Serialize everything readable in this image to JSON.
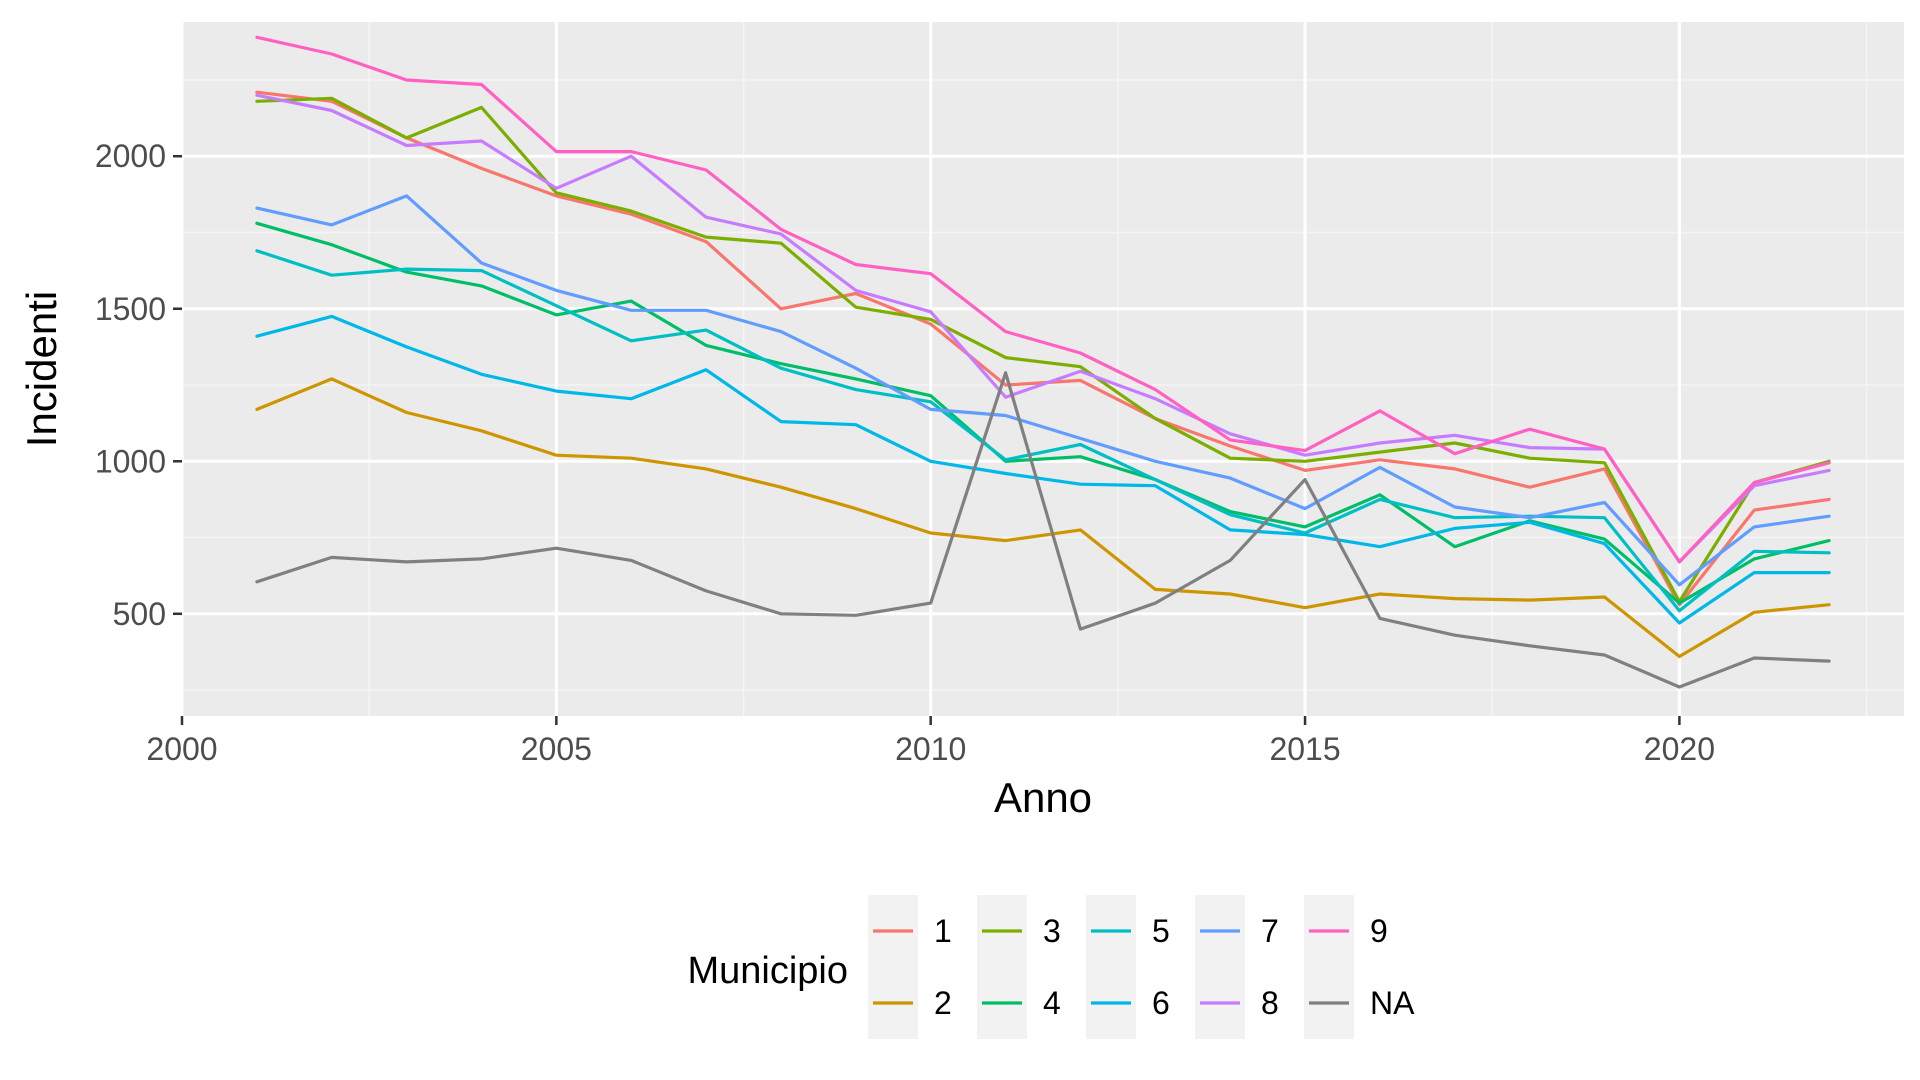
{
  "chart_data": {
    "type": "line",
    "title": "",
    "xlabel": "Anno",
    "ylabel": "Incidenti",
    "xlim": [
      2000,
      2023
    ],
    "ylim": [
      165,
      2440
    ],
    "x_ticks": [
      2000,
      2005,
      2010,
      2015,
      2020
    ],
    "y_ticks": [
      500,
      1000,
      1500,
      2000
    ],
    "x_tick_labels": [
      "2000",
      "2005",
      "2010",
      "2015",
      "2020"
    ],
    "y_tick_labels": [
      "500",
      "1000",
      "1500",
      "2000"
    ],
    "grid": true,
    "legend": {
      "title": "Municipio",
      "position": "bottom"
    },
    "x": [
      2001,
      2002,
      2003,
      2004,
      2005,
      2006,
      2007,
      2008,
      2009,
      2010,
      2011,
      2012,
      2013,
      2014,
      2015,
      2016,
      2017,
      2018,
      2019,
      2020,
      2021,
      2022
    ],
    "series": [
      {
        "name": "1",
        "color": "#F8766D",
        "values": [
          2210,
          2180,
          2060,
          1960,
          1870,
          1810,
          1720,
          1500,
          1550,
          1450,
          1250,
          1265,
          1140,
          1050,
          970,
          1005,
          975,
          915,
          975,
          530,
          840,
          875
        ]
      },
      {
        "name": "2",
        "color": "#CD9600",
        "values": [
          1170,
          1270,
          1160,
          1100,
          1020,
          1010,
          975,
          915,
          845,
          765,
          740,
          775,
          580,
          565,
          520,
          565,
          550,
          545,
          555,
          360,
          505,
          530
        ]
      },
      {
        "name": "3",
        "color": "#7CAE00",
        "values": [
          2180,
          2190,
          2060,
          2160,
          1880,
          1820,
          1735,
          1715,
          1505,
          1465,
          1340,
          1310,
          1140,
          1010,
          1000,
          1030,
          1060,
          1010,
          995,
          540,
          930,
          1000
        ]
      },
      {
        "name": "4",
        "color": "#00BE67",
        "values": [
          1780,
          1710,
          1620,
          1575,
          1480,
          1525,
          1380,
          1320,
          1270,
          1215,
          1000,
          1015,
          940,
          835,
          785,
          890,
          720,
          805,
          745,
          535,
          680,
          740
        ]
      },
      {
        "name": "5",
        "color": "#00BFC4",
        "values": [
          1690,
          1610,
          1630,
          1625,
          1510,
          1395,
          1430,
          1305,
          1235,
          1195,
          1005,
          1055,
          940,
          825,
          765,
          875,
          815,
          820,
          815,
          510,
          705,
          700
        ]
      },
      {
        "name": "6",
        "color": "#00B8E7",
        "values": [
          1410,
          1475,
          1375,
          1285,
          1230,
          1205,
          1300,
          1130,
          1120,
          1000,
          960,
          925,
          920,
          775,
          760,
          720,
          780,
          800,
          730,
          470,
          635,
          635
        ]
      },
      {
        "name": "7",
        "color": "#619CFF",
        "values": [
          1830,
          1775,
          1870,
          1650,
          1560,
          1495,
          1495,
          1425,
          1305,
          1170,
          1150,
          1075,
          1000,
          945,
          845,
          980,
          850,
          815,
          865,
          595,
          785,
          820
        ]
      },
      {
        "name": "8",
        "color": "#C77CFF",
        "values": [
          2200,
          2150,
          2035,
          2050,
          1895,
          2000,
          1800,
          1745,
          1560,
          1490,
          1210,
          1295,
          1205,
          1090,
          1020,
          1060,
          1085,
          1045,
          1040,
          670,
          920,
          970
        ]
      },
      {
        "name": "9",
        "color": "#FF61C3",
        "values": [
          2390,
          2335,
          2250,
          2235,
          2015,
          2015,
          1955,
          1760,
          1645,
          1615,
          1425,
          1355,
          1235,
          1070,
          1035,
          1165,
          1025,
          1105,
          1040,
          670,
          930,
          995
        ]
      },
      {
        "name": "NA",
        "color": "#808080",
        "values": [
          605,
          685,
          670,
          680,
          715,
          675,
          575,
          500,
          495,
          535,
          1290,
          450,
          535,
          675,
          940,
          485,
          430,
          395,
          365,
          260,
          355,
          345
        ]
      }
    ]
  },
  "style": {
    "panel_background": "#EBEBEB",
    "grid_major_color": "#FFFFFF",
    "grid_minor_color": "#F5F5F5",
    "legend_key_background": "#F2F2F2",
    "axis_tick_color": "#333333"
  }
}
